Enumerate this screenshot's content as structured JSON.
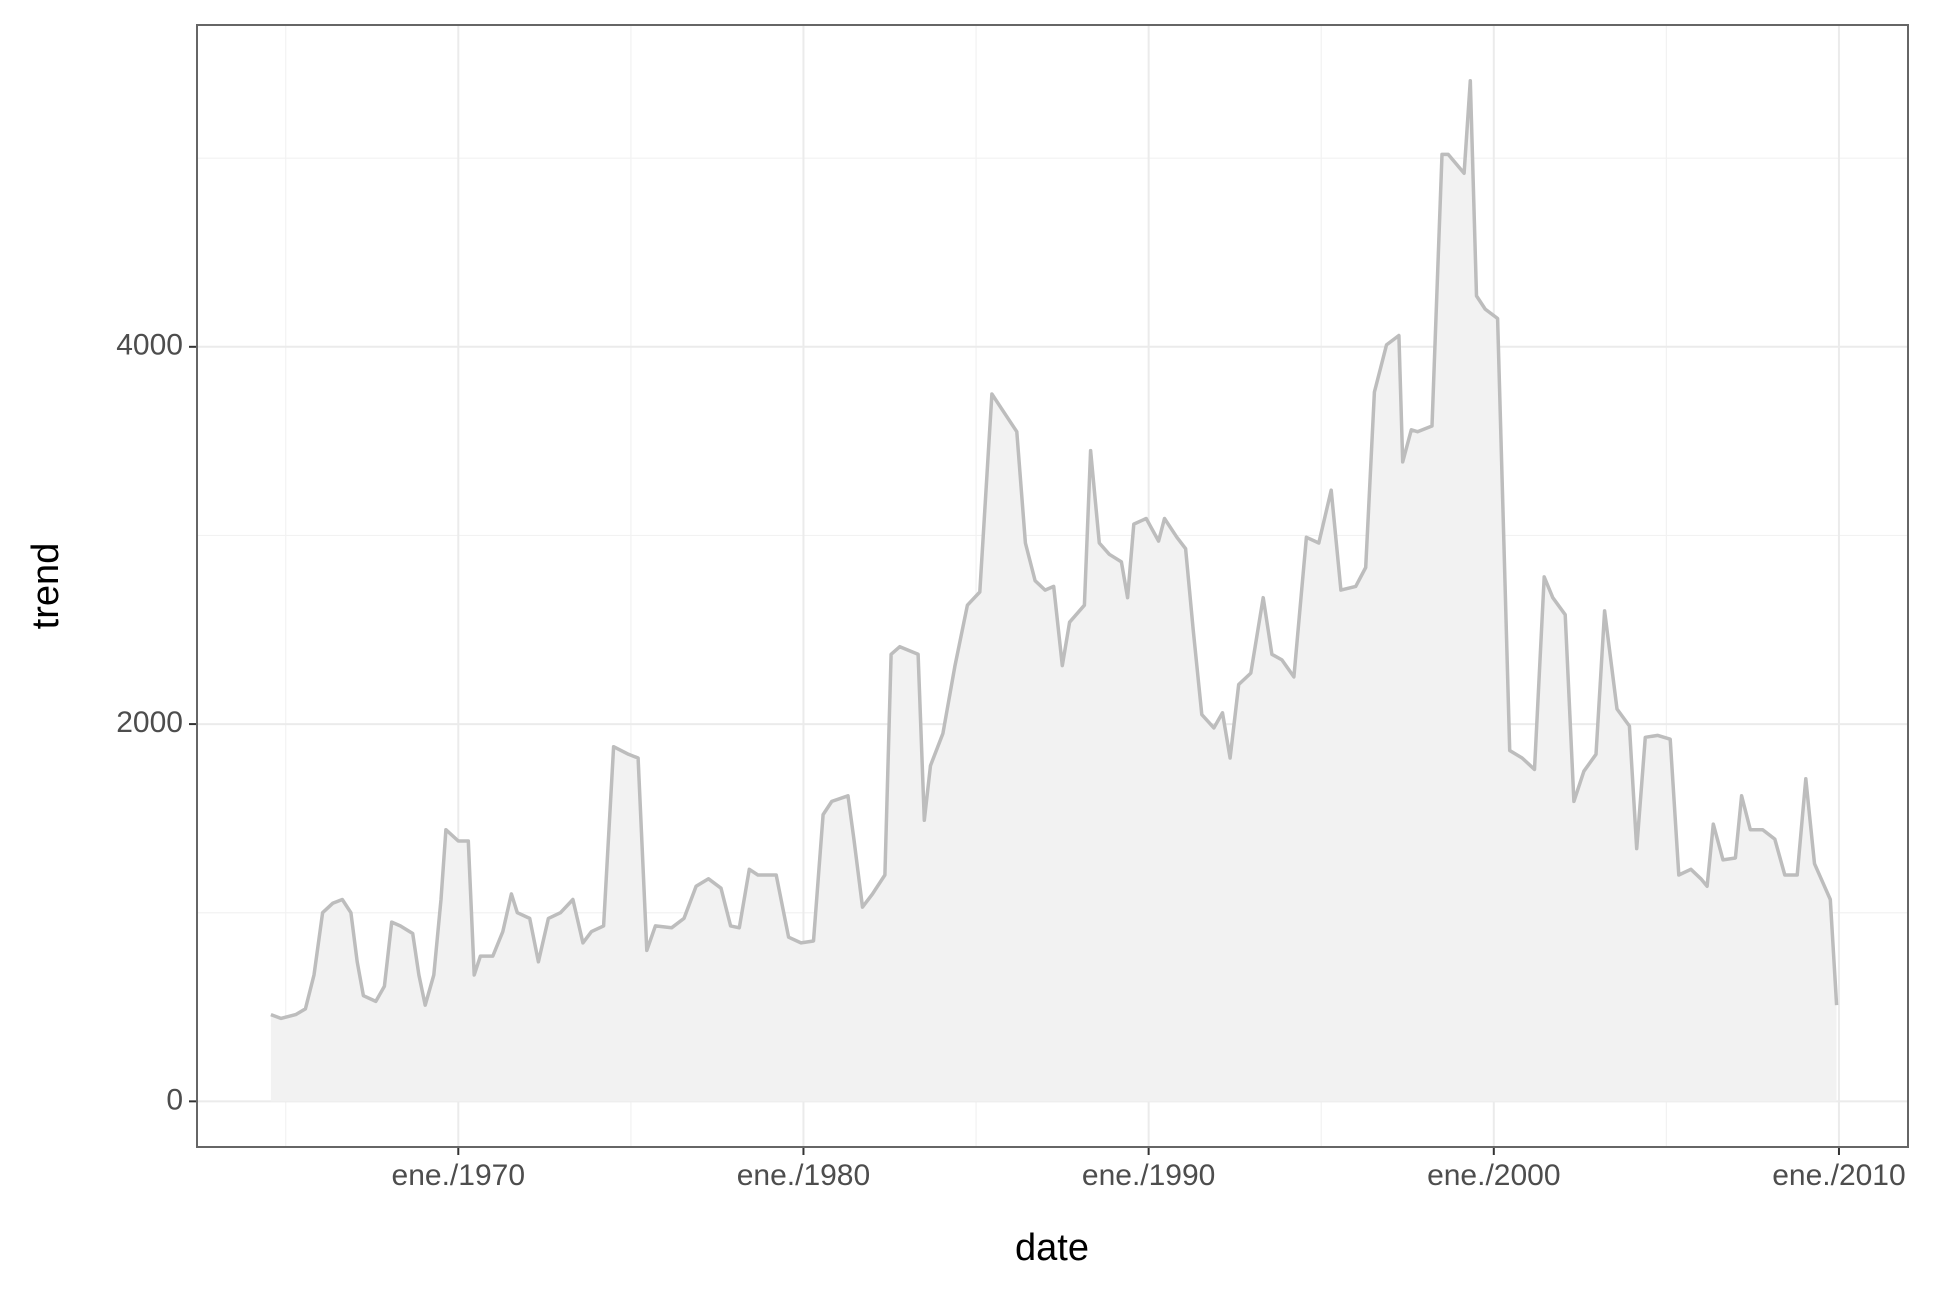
{
  "chart_data": {
    "type": "area",
    "x_label": "date",
    "y_label": "trend",
    "x": [
      1964.57,
      1964.86,
      1965.29,
      1965.57,
      1965.82,
      1966.07,
      1966.36,
      1966.64,
      1966.89,
      1967.07,
      1967.25,
      1967.61,
      1967.86,
      1968.07,
      1968.32,
      1968.68,
      1968.86,
      1969.04,
      1969.29,
      1969.5,
      1969.64,
      1970.0,
      1970.29,
      1970.46,
      1970.64,
      1971.0,
      1971.29,
      1971.54,
      1971.71,
      1972.07,
      1972.32,
      1972.61,
      1972.96,
      1973.32,
      1973.61,
      1973.86,
      1974.21,
      1974.5,
      1974.93,
      1975.21,
      1975.46,
      1975.71,
      1976.18,
      1976.54,
      1976.89,
      1977.25,
      1977.61,
      1977.89,
      1978.14,
      1978.43,
      1978.68,
      1979.21,
      1979.57,
      1979.93,
      1980.29,
      1980.57,
      1980.82,
      1981.29,
      1981.46,
      1981.71,
      1982.0,
      1982.36,
      1982.54,
      1982.79,
      1983.32,
      1983.5,
      1983.68,
      1984.04,
      1984.39,
      1984.75,
      1985.11,
      1985.46,
      1985.82,
      1986.18,
      1986.43,
      1986.71,
      1987.0,
      1987.25,
      1987.5,
      1987.71,
      1988.14,
      1988.32,
      1988.57,
      1988.86,
      1989.21,
      1989.39,
      1989.57,
      1989.93,
      1990.29,
      1990.46,
      1990.82,
      1991.07,
      1991.29,
      1991.54,
      1991.89,
      1992.14,
      1992.36,
      1992.61,
      1992.96,
      1993.32,
      1993.57,
      1993.86,
      1994.21,
      1994.57,
      1994.93,
      1995.29,
      1995.57,
      1996.0,
      1996.29,
      1996.54,
      1996.89,
      1997.25,
      1997.36,
      1997.61,
      1997.79,
      1998.21,
      1998.5,
      1998.68,
      1999.14,
      1999.32,
      1999.5,
      1999.75,
      2000.11,
      2000.46,
      2000.82,
      2001.18,
      2001.46,
      2001.71,
      2002.07,
      2002.32,
      2002.61,
      2002.96,
      2003.21,
      2003.57,
      2003.93,
      2004.14,
      2004.39,
      2004.75,
      2005.11,
      2005.36,
      2005.71,
      2006.0,
      2006.18,
      2006.36,
      2006.64,
      2007.0,
      2007.18,
      2007.43,
      2007.79,
      2008.14,
      2008.43,
      2008.79,
      2009.04,
      2009.29,
      2009.75,
      2009.93
    ],
    "values": [
      460,
      440,
      460,
      490,
      670,
      1000,
      1050,
      1070,
      1000,
      740,
      560,
      530,
      610,
      950,
      930,
      890,
      670,
      510,
      670,
      1070,
      1440,
      1380,
      1380,
      670,
      770,
      770,
      900,
      1100,
      1000,
      970,
      740,
      970,
      1000,
      1070,
      840,
      900,
      930,
      1880,
      1840,
      1820,
      800,
      930,
      920,
      970,
      1140,
      1180,
      1130,
      930,
      920,
      1230,
      1200,
      1200,
      870,
      840,
      850,
      1520,
      1590,
      1620,
      1390,
      1030,
      1100,
      1200,
      2370,
      2410,
      2370,
      1490,
      1780,
      1950,
      2310,
      2630,
      2700,
      3750,
      3650,
      3550,
      2960,
      2760,
      2710,
      2730,
      2310,
      2540,
      2630,
      3450,
      2960,
      2900,
      2860,
      2670,
      3060,
      3090,
      2970,
      3090,
      2990,
      2930,
      2500,
      2050,
      1980,
      2060,
      1820,
      2210,
      2270,
      2670,
      2370,
      2340,
      2250,
      2990,
      2960,
      3240,
      2710,
      2730,
      2830,
      3760,
      4010,
      4060,
      3390,
      3560,
      3550,
      3580,
      5020,
      5020,
      4920,
      5410,
      4270,
      4200,
      4150,
      1860,
      1820,
      1760,
      2780,
      2670,
      2580,
      1590,
      1750,
      1840,
      2600,
      2080,
      1990,
      1340,
      1930,
      1940,
      1920,
      1200,
      1230,
      1180,
      1140,
      1470,
      1280,
      1290,
      1620,
      1440,
      1440,
      1390,
      1200,
      1200,
      1710,
      1260,
      1070,
      510
    ],
    "color": "#bdbdbd",
    "fill": "#f2f2f2",
    "xlim": [
      1962.43,
      2012.0
    ],
    "ylim": [
      -242,
      5706
    ],
    "xticks": [
      {
        "value": 1970,
        "label": "ene./1970"
      },
      {
        "value": 1980,
        "label": "ene./1980"
      },
      {
        "value": 1990,
        "label": "ene./1990"
      },
      {
        "value": 2000,
        "label": "ene./2000"
      },
      {
        "value": 2010,
        "label": "ene./2010"
      }
    ],
    "yticks": [
      0,
      2000,
      4000
    ],
    "x_minor_grid": [
      1965,
      1975,
      1985,
      1995,
      2005
    ],
    "y_minor_grid": [
      1000,
      3000,
      5000
    ],
    "grid": true
  }
}
